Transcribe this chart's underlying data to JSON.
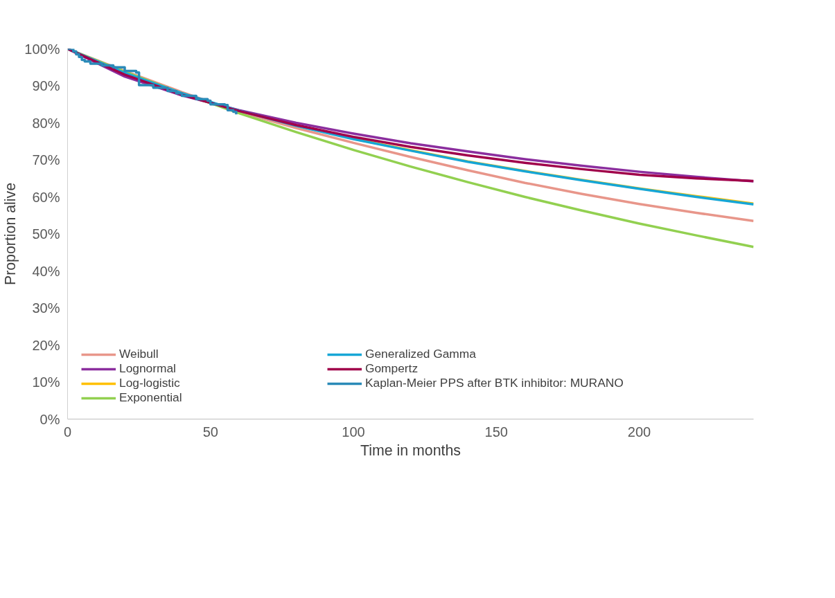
{
  "chart_data": {
    "type": "line",
    "xlabel": "Time in months",
    "ylabel": "Proportion alive",
    "xlim": [
      0,
      240
    ],
    "xticks": [
      0,
      50,
      100,
      150,
      200
    ],
    "ylim": [
      0,
      100
    ],
    "yticks": [
      {
        "value": 0,
        "label": "0%"
      },
      {
        "value": 10,
        "label": "10%"
      },
      {
        "value": 20,
        "label": "20%"
      },
      {
        "value": 30,
        "label": "30%"
      },
      {
        "value": 40,
        "label": "40%"
      },
      {
        "value": 50,
        "label": "50%"
      },
      {
        "value": 60,
        "label": "60%"
      },
      {
        "value": 70,
        "label": "70%"
      },
      {
        "value": 80,
        "label": "80%"
      },
      {
        "value": 90,
        "label": "90%"
      },
      {
        "value": 100,
        "label": "100%"
      }
    ],
    "grid": false,
    "legend": "bottom",
    "marker": "none",
    "line_style": "solid",
    "x": [
      0,
      20,
      40,
      60,
      80,
      100,
      120,
      140,
      160,
      180,
      200,
      220,
      240
    ],
    "series": [
      {
        "name": "Weibull",
        "color": "#e8968a",
        "values": [
          100,
          94.0,
          88.3,
          83.0,
          78.6,
          74.6,
          70.8,
          67.2,
          63.8,
          60.8,
          58.1,
          55.7,
          53.5
        ]
      },
      {
        "name": "Lognormal",
        "color": "#8b2e9e",
        "values": [
          100,
          92.5,
          87.4,
          83.4,
          80.0,
          77.1,
          74.5,
          72.3,
          70.2,
          68.4,
          66.8,
          65.4,
          64.2
        ]
      },
      {
        "name": "Log-logistic",
        "color": "#ffc000",
        "values": [
          null,
          null,
          null,
          null,
          null,
          75.7,
          72.6,
          69.6,
          67.0,
          64.6,
          62.3,
          60.2,
          58.2
        ]
      },
      {
        "name": "Exponential",
        "color": "#92d050",
        "values": [
          100,
          93.8,
          88.0,
          82.6,
          77.5,
          72.7,
          68.2,
          64.0,
          60.0,
          56.3,
          52.8,
          49.6,
          46.5
        ]
      },
      {
        "name": "Generalized Gamma",
        "color": "#16a6d6",
        "values": [
          100,
          93.5,
          88.0,
          83.3,
          79.2,
          75.6,
          72.5,
          69.5,
          66.9,
          64.5,
          62.2,
          60.0,
          58.0
        ]
      },
      {
        "name": "Gompertz",
        "color": "#a0004a",
        "values": [
          100,
          93.0,
          87.6,
          83.2,
          79.4,
          76.2,
          73.5,
          71.2,
          69.2,
          67.5,
          66.0,
          65.0,
          64.3
        ]
      },
      {
        "name": "Kaplan-Meier PPS after BTK inhibitor: MURANO",
        "color": "#2a8ab8",
        "type": "step",
        "x": [
          0,
          2,
          3,
          4,
          5,
          6,
          8,
          12,
          16,
          20,
          24,
          25,
          30,
          35,
          38,
          40,
          45,
          49,
          50,
          55,
          56,
          58,
          59
        ],
        "values": [
          100,
          99.3,
          98.5,
          97.8,
          97.0,
          96.6,
          96.0,
          95.5,
          95.0,
          94.0,
          93.6,
          90.2,
          89.5,
          88.6,
          88.0,
          87.3,
          86.4,
          86.0,
          85.0,
          84.8,
          83.4,
          83.0,
          82.3
        ]
      }
    ]
  }
}
